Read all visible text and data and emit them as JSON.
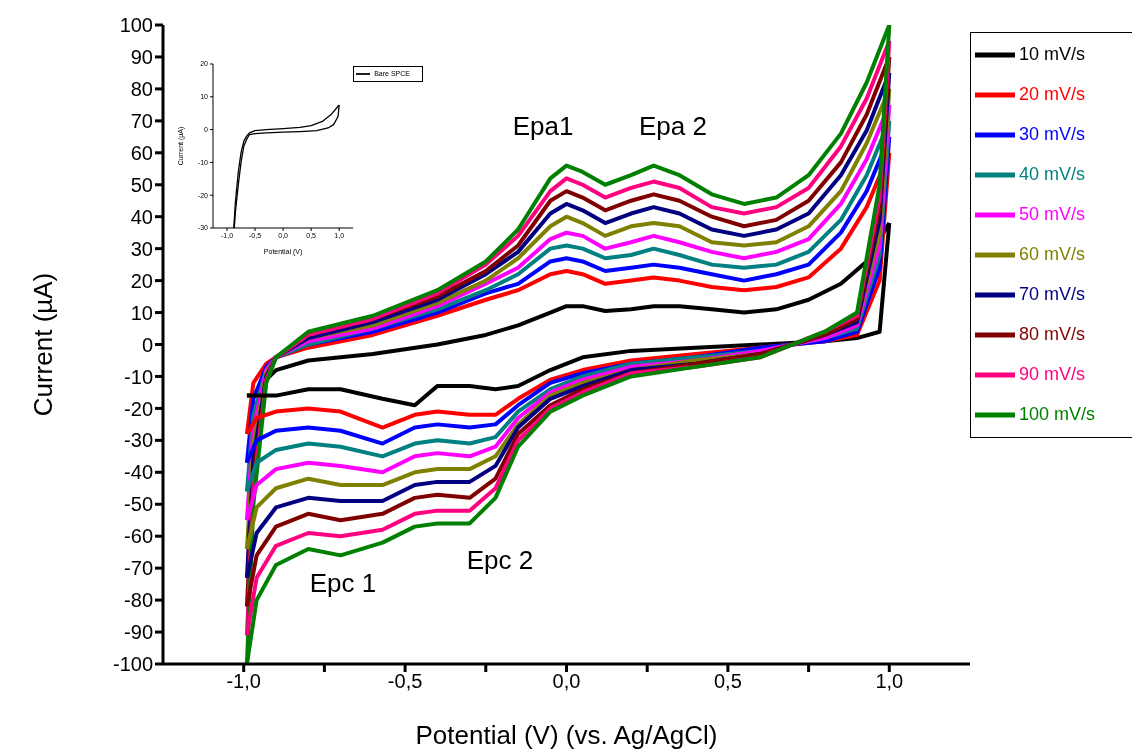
{
  "chart_data": [
    {
      "type": "line",
      "xlabel": "Potential (V) (vs. Ag/AgCl)",
      "ylabel": "Current (µA)",
      "series": [
        {
          "name": "10 mV/s",
          "color": "#000000",
          "x": [
            -0.99,
            -0.97,
            -0.93,
            -0.9,
            -0.8,
            -0.6,
            -0.4,
            -0.25,
            -0.15,
            -0.05,
            0.0,
            0.05,
            0.12,
            0.2,
            0.27,
            0.35,
            0.45,
            0.55,
            0.65,
            0.75,
            0.85,
            0.93,
            1.0
          ],
          "values": [
            -16,
            -16,
            -11,
            -8,
            -5,
            -3,
            0,
            3,
            6,
            10,
            12,
            12,
            10.5,
            11,
            12,
            12,
            11,
            10,
            11,
            14,
            19,
            26,
            38
          ]
        },
        {
          "name": "20 mV/s",
          "color": "#ff0000",
          "x": [
            -0.99,
            -0.97,
            -0.93,
            -0.9,
            -0.8,
            -0.6,
            -0.4,
            -0.25,
            -0.15,
            -0.05,
            0.0,
            0.05,
            0.12,
            0.2,
            0.27,
            0.35,
            0.45,
            0.55,
            0.65,
            0.75,
            0.85,
            0.93,
            1.0
          ],
          "values": [
            -28,
            -12,
            -6,
            -4,
            -1,
            3,
            9,
            14,
            17,
            22,
            23,
            22,
            19,
            20,
            21,
            20,
            18,
            17,
            18,
            21,
            30,
            43,
            60
          ]
        },
        {
          "name": "30 mV/s",
          "color": "#0000ff",
          "x": [
            -0.99,
            -0.97,
            -0.93,
            -0.9,
            -0.8,
            -0.6,
            -0.4,
            -0.25,
            -0.15,
            -0.05,
            0.0,
            0.05,
            0.12,
            0.2,
            0.27,
            0.35,
            0.45,
            0.55,
            0.65,
            0.75,
            0.85,
            0.93,
            1.0
          ],
          "values": [
            -37,
            -17,
            -7,
            -4,
            0,
            4,
            10,
            16,
            19,
            26,
            27,
            26,
            23,
            24,
            25,
            24,
            22,
            20,
            22,
            25,
            35,
            48,
            65
          ]
        },
        {
          "name": "40 mV/s",
          "color": "#008080",
          "x": [
            -0.99,
            -0.97,
            -0.93,
            -0.9,
            -0.8,
            -0.6,
            -0.4,
            -0.25,
            -0.15,
            -0.05,
            0.0,
            0.05,
            0.12,
            0.2,
            0.27,
            0.35,
            0.45,
            0.55,
            0.65,
            0.75,
            0.85,
            0.93,
            1.0
          ],
          "values": [
            -46,
            -22,
            -8,
            -4,
            0,
            5,
            11,
            17,
            22,
            30,
            31,
            30,
            27,
            28,
            30,
            28,
            25,
            24,
            25,
            29,
            39,
            53,
            70
          ]
        },
        {
          "name": "50 mV/s",
          "color": "#ff00ff",
          "x": [
            -0.99,
            -0.97,
            -0.93,
            -0.9,
            -0.8,
            -0.6,
            -0.4,
            -0.25,
            -0.15,
            -0.05,
            0.0,
            0.05,
            0.12,
            0.2,
            0.27,
            0.35,
            0.45,
            0.55,
            0.65,
            0.75,
            0.85,
            0.93,
            1.0
          ],
          "values": [
            -55,
            -26,
            -8,
            -4,
            1,
            5,
            12,
            19,
            24,
            33,
            35,
            34,
            30,
            32,
            34,
            32,
            29,
            27,
            29,
            33,
            44,
            58,
            75
          ]
        },
        {
          "name": "60 mV/s",
          "color": "#808000",
          "x": [
            -0.99,
            -0.97,
            -0.93,
            -0.9,
            -0.8,
            -0.6,
            -0.4,
            -0.25,
            -0.15,
            -0.05,
            0.0,
            0.05,
            0.12,
            0.2,
            0.27,
            0.35,
            0.45,
            0.55,
            0.65,
            0.75,
            0.85,
            0.93,
            1.0
          ],
          "values": [
            -64,
            -31,
            -9,
            -4,
            2,
            6,
            13,
            20,
            27,
            37,
            40,
            38,
            34,
            37,
            38,
            37,
            32,
            31,
            32,
            37,
            48,
            63,
            80
          ]
        },
        {
          "name": "70 mV/s",
          "color": "#000080",
          "x": [
            -0.99,
            -0.97,
            -0.93,
            -0.9,
            -0.8,
            -0.6,
            -0.4,
            -0.25,
            -0.15,
            -0.05,
            0.0,
            0.05,
            0.12,
            0.2,
            0.27,
            0.35,
            0.45,
            0.55,
            0.65,
            0.75,
            0.85,
            0.93,
            1.0
          ],
          "values": [
            -73,
            -36,
            -10,
            -4,
            2,
            7,
            14,
            22,
            29,
            41,
            44,
            42,
            38,
            41,
            43,
            41,
            36,
            34,
            36,
            41,
            53,
            67,
            85
          ]
        },
        {
          "name": "80 mV/s",
          "color": "#800000",
          "x": [
            -0.99,
            -0.97,
            -0.93,
            -0.9,
            -0.8,
            -0.6,
            -0.4,
            -0.25,
            -0.15,
            -0.05,
            0.0,
            0.05,
            0.12,
            0.2,
            0.27,
            0.35,
            0.45,
            0.55,
            0.65,
            0.75,
            0.85,
            0.93,
            1.0
          ],
          "values": [
            -82,
            -41,
            -11,
            -4,
            3,
            8,
            15,
            23,
            31,
            45,
            48,
            46,
            42,
            45,
            47,
            45,
            40,
            37,
            39,
            45,
            57,
            72,
            90
          ]
        },
        {
          "name": "90 mV/s",
          "color": "#ff0080",
          "x": [
            -0.99,
            -0.97,
            -0.93,
            -0.9,
            -0.8,
            -0.6,
            -0.4,
            -0.25,
            -0.15,
            -0.05,
            0.0,
            0.05,
            0.12,
            0.2,
            0.27,
            0.35,
            0.45,
            0.55,
            0.65,
            0.75,
            0.85,
            0.93,
            1.0
          ],
          "values": [
            -91,
            -45,
            -11,
            -4,
            3,
            8,
            16,
            25,
            34,
            48,
            52,
            50,
            46,
            49,
            51,
            49,
            43,
            41,
            43,
            49,
            62,
            77,
            95
          ]
        },
        {
          "name": "100 mV/s",
          "color": "#008000",
          "x": [
            -0.99,
            -0.97,
            -0.93,
            -0.9,
            -0.8,
            -0.6,
            -0.4,
            -0.25,
            -0.15,
            -0.05,
            0.0,
            0.05,
            0.12,
            0.2,
            0.27,
            0.35,
            0.45,
            0.55,
            0.65,
            0.75,
            0.85,
            0.93,
            1.0
          ],
          "values": [
            -100,
            -50,
            -12,
            -4,
            4,
            9,
            17,
            26,
            36,
            52,
            56,
            54,
            50,
            53,
            56,
            53,
            47,
            44,
            46,
            53,
            66,
            82,
            100
          ]
        },
        {
          "color": "#000000",
          "x": [
            1.0,
            0.97,
            0.9,
            0.8,
            0.6,
            0.4,
            0.2,
            0.05,
            -0.05,
            -0.15,
            -0.22,
            -0.3,
            -0.4,
            -0.47,
            -0.57,
            -0.7,
            -0.8,
            -0.9,
            -0.96,
            -0.99
          ],
          "values": [
            38,
            4,
            2,
            1,
            0,
            -1,
            -2,
            -4,
            -8,
            -13,
            -14,
            -13,
            -13,
            -19,
            -17,
            -14,
            -14,
            -16,
            -16,
            -16
          ]
        },
        {
          "color": "#ff0000",
          "x": [
            1.0,
            0.97,
            0.9,
            0.8,
            0.6,
            0.4,
            0.2,
            0.05,
            -0.05,
            -0.15,
            -0.22,
            -0.3,
            -0.4,
            -0.47,
            -0.57,
            -0.7,
            -0.8,
            -0.9,
            -0.96,
            -0.99
          ],
          "values": [
            60,
            20,
            3,
            1,
            -1,
            -3,
            -5,
            -8,
            -11,
            -17,
            -22,
            -22,
            -21,
            -22,
            -26,
            -21,
            -20,
            -21,
            -23,
            -28
          ]
        },
        {
          "color": "#0000ff",
          "x": [
            1.0,
            0.97,
            0.9,
            0.8,
            0.6,
            0.4,
            0.2,
            0.05,
            -0.05,
            -0.15,
            -0.22,
            -0.3,
            -0.4,
            -0.47,
            -0.57,
            -0.7,
            -0.8,
            -0.9,
            -0.96,
            -0.99
          ],
          "values": [
            65,
            24,
            4,
            1,
            -1,
            -4,
            -6,
            -9,
            -12,
            -19,
            -25,
            -26,
            -25,
            -26,
            -31,
            -27,
            -26,
            -27,
            -30,
            -37
          ]
        },
        {
          "color": "#008080",
          "x": [
            1.0,
            0.97,
            0.9,
            0.8,
            0.6,
            0.4,
            0.2,
            0.05,
            -0.05,
            -0.15,
            -0.22,
            -0.3,
            -0.4,
            -0.47,
            -0.57,
            -0.7,
            -0.8,
            -0.9,
            -0.96,
            -0.99
          ],
          "values": [
            70,
            28,
            5,
            2,
            -2,
            -4,
            -6,
            -10,
            -14,
            -21,
            -29,
            -31,
            -30,
            -31,
            -35,
            -32,
            -31,
            -33,
            -37,
            -46
          ]
        },
        {
          "color": "#ff00ff",
          "x": [
            1.0,
            0.97,
            0.9,
            0.8,
            0.6,
            0.4,
            0.2,
            0.05,
            -0.05,
            -0.15,
            -0.22,
            -0.3,
            -0.4,
            -0.47,
            -0.57,
            -0.7,
            -0.8,
            -0.9,
            -0.96,
            -0.99
          ],
          "values": [
            75,
            31,
            6,
            2,
            -2,
            -5,
            -7,
            -11,
            -15,
            -23,
            -32,
            -35,
            -34,
            -35,
            -40,
            -38,
            -37,
            -39,
            -44,
            -55
          ]
        },
        {
          "color": "#808000",
          "x": [
            1.0,
            0.97,
            0.9,
            0.8,
            0.6,
            0.4,
            0.2,
            0.05,
            -0.05,
            -0.15,
            -0.22,
            -0.3,
            -0.4,
            -0.47,
            -0.57,
            -0.7,
            -0.8,
            -0.9,
            -0.96,
            -0.99
          ],
          "values": [
            80,
            35,
            7,
            3,
            -3,
            -5,
            -8,
            -12,
            -16,
            -25,
            -35,
            -39,
            -39,
            -40,
            -44,
            -44,
            -42,
            -45,
            -51,
            -64
          ]
        },
        {
          "color": "#000080",
          "x": [
            1.0,
            0.97,
            0.9,
            0.8,
            0.6,
            0.4,
            0.2,
            0.05,
            -0.05,
            -0.15,
            -0.22,
            -0.3,
            -0.4,
            -0.47,
            -0.57,
            -0.7,
            -0.8,
            -0.9,
            -0.96,
            -0.99
          ],
          "values": [
            85,
            39,
            7,
            3,
            -3,
            -6,
            -8,
            -13,
            -17,
            -26,
            -38,
            -43,
            -43,
            -44,
            -49,
            -49,
            -48,
            -51,
            -59,
            -73
          ]
        },
        {
          "color": "#800000",
          "x": [
            1.0,
            0.97,
            0.9,
            0.8,
            0.6,
            0.4,
            0.2,
            0.05,
            -0.05,
            -0.15,
            -0.22,
            -0.3,
            -0.4,
            -0.47,
            -0.57,
            -0.7,
            -0.8,
            -0.9,
            -0.96,
            -0.99
          ],
          "values": [
            90,
            43,
            8,
            3,
            -3,
            -6,
            -9,
            -14,
            -19,
            -28,
            -42,
            -48,
            -47,
            -48,
            -53,
            -55,
            -53,
            -57,
            -66,
            -82
          ]
        },
        {
          "color": "#ff0080",
          "x": [
            1.0,
            0.97,
            0.9,
            0.8,
            0.6,
            0.4,
            0.2,
            0.05,
            -0.05,
            -0.15,
            -0.22,
            -0.3,
            -0.4,
            -0.47,
            -0.57,
            -0.7,
            -0.8,
            -0.9,
            -0.96,
            -0.99
          ],
          "values": [
            95,
            46,
            9,
            4,
            -4,
            -7,
            -9,
            -15,
            -20,
            -30,
            -45,
            -52,
            -52,
            -53,
            -58,
            -60,
            -59,
            -63,
            -73,
            -91
          ]
        },
        {
          "color": "#008000",
          "x": [
            1.0,
            0.97,
            0.9,
            0.8,
            0.6,
            0.4,
            0.2,
            0.05,
            -0.05,
            -0.15,
            -0.22,
            -0.3,
            -0.4,
            -0.47,
            -0.57,
            -0.7,
            -0.8,
            -0.9,
            -0.96,
            -0.99
          ],
          "values": [
            100,
            50,
            10,
            4,
            -4,
            -7,
            -10,
            -16,
            -21,
            -32,
            -48,
            -56,
            -56,
            -57,
            -62,
            -66,
            -64,
            -69,
            -80,
            -100
          ]
        }
      ],
      "xlim": [
        -1.25,
        1.25
      ],
      "xticks": [
        {
          "value": -1.0,
          "label": "-1,0"
        },
        {
          "value": -0.75,
          "label": null
        },
        {
          "value": -0.5,
          "label": "-0,5"
        },
        {
          "value": -0.25,
          "label": null
        },
        {
          "value": 0.0,
          "label": "0,0"
        },
        {
          "value": 0.25,
          "label": null
        },
        {
          "value": 0.5,
          "label": "0,5"
        },
        {
          "value": 0.75,
          "label": null
        },
        {
          "value": 1.0,
          "label": "1,0"
        }
      ],
      "ylim": [
        -100,
        100
      ],
      "yticks": [
        -100,
        -90,
        -80,
        -70,
        -60,
        -50,
        -40,
        -30,
        -20,
        -10,
        0,
        10,
        20,
        30,
        40,
        50,
        60,
        70,
        80,
        90,
        100
      ],
      "legend": "right",
      "grid": false,
      "annotations": [
        "Epa1",
        "Epa 2",
        "Epc 1",
        "Epc 2"
      ]
    },
    {
      "type": "line",
      "xlabel": "Potential (V)",
      "ylabel": "Current (µA)",
      "series": [
        {
          "name": "Bare SPCE",
          "color": "#000000",
          "x": [
            -0.88,
            -0.85,
            -0.8,
            -0.75,
            -0.7,
            -0.65,
            -0.6,
            -0.5,
            -0.3,
            0.0,
            0.3,
            0.5,
            0.7,
            0.85,
            1.0
          ],
          "values": [
            -30,
            -22,
            -13,
            -7,
            -3.5,
            -2,
            -1,
            -0.3,
            0,
            0.3,
            0.7,
            1.2,
            2.5,
            4.5,
            7.5
          ]
        },
        {
          "color": "#000000",
          "x": [
            1.0,
            0.98,
            0.9,
            0.8,
            0.6,
            0.3,
            0.0,
            -0.3,
            -0.5,
            -0.6,
            -0.65,
            -0.7,
            -0.75,
            -0.8,
            -0.85,
            -0.87
          ],
          "values": [
            7.5,
            4,
            1.5,
            0.5,
            -0.3,
            -0.6,
            -0.8,
            -1,
            -1.2,
            -1.5,
            -3,
            -5,
            -10,
            -17,
            -25,
            -30
          ]
        }
      ],
      "xlim": [
        -1.25,
        1.25
      ],
      "xticks": [
        {
          "value": -1.0,
          "label": "-1,0"
        },
        {
          "value": -0.5,
          "label": "-0,5"
        },
        {
          "value": 0.0,
          "label": "0,0"
        },
        {
          "value": 0.5,
          "label": "0,5"
        },
        {
          "value": 1.0,
          "label": "1,0"
        }
      ],
      "ylim": [
        -30,
        20
      ],
      "yticks": [
        -30,
        -20,
        -10,
        0,
        10,
        20
      ],
      "legend": "top right",
      "grid": false
    }
  ]
}
